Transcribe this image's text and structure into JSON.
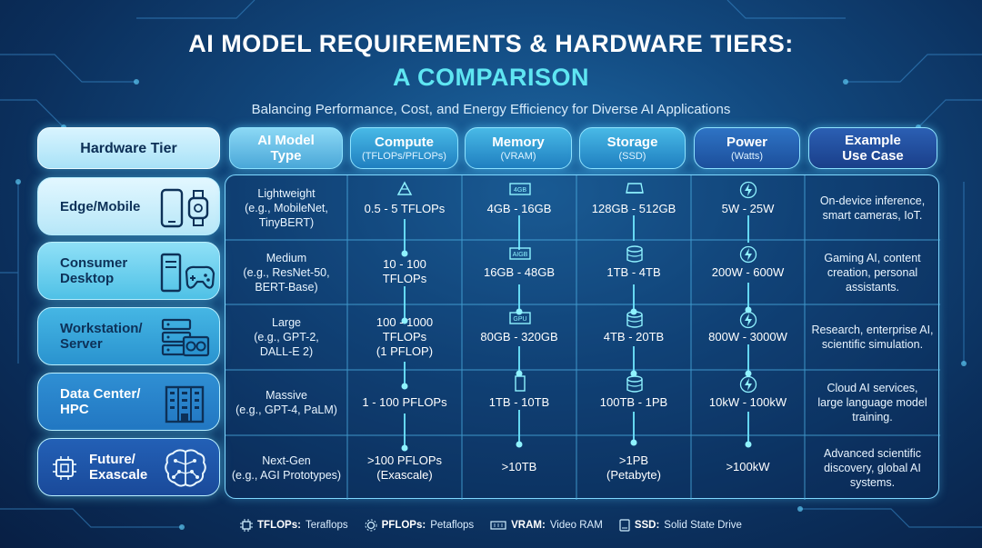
{
  "header": {
    "title_line1": "AI MODEL REQUIREMENTS & HARDWARE TIERS:",
    "title_line2": "A COMPARISON",
    "subtitle": "Balancing Performance, Cost, and Energy Efficiency for Diverse AI Applications"
  },
  "columns": [
    {
      "main": "Hardware Tier",
      "sub": ""
    },
    {
      "main": "AI Model\nType",
      "sub": ""
    },
    {
      "main": "Compute",
      "sub": "(TFLOPs/PFLOPs)"
    },
    {
      "main": "Memory",
      "sub": "(VRAM)"
    },
    {
      "main": "Storage",
      "sub": "(SSD)"
    },
    {
      "main": "Power",
      "sub": "(Watts)"
    },
    {
      "main": "Example\nUse Case",
      "sub": ""
    }
  ],
  "rows": [
    {
      "tier": "Edge/Mobile",
      "model": "Lightweight\n(e.g., MobileNet,\nTinyBERT)",
      "compute": "0.5 - 5 TFLOPs",
      "memory": "4GB - 16GB",
      "memory_chip": "4GB",
      "storage": "128GB - 512GB",
      "power": "5W - 25W",
      "use_case": "On-device inference,\nsmart cameras, IoT."
    },
    {
      "tier": "Consumer\nDesktop",
      "model": "Medium\n(e.g., ResNet-50,\nBERT-Base)",
      "compute": "10 - 100\nTFLOPs",
      "memory": "16GB - 48GB",
      "memory_chip": "AIGB",
      "storage": "1TB - 4TB",
      "power": "200W - 600W",
      "use_case": "Gaming AI, content\ncreation, personal\nassistants."
    },
    {
      "tier": "Workstation/\nServer",
      "model": "Large\n(e.g., GPT-2,\nDALL-E 2)",
      "compute": "100 - 1000\nTFLOPs\n(1 PFLOP)",
      "memory": "80GB - 320GB",
      "memory_chip": "GPU",
      "storage": "4TB - 20TB",
      "power": "800W - 3000W",
      "use_case": "Research, enterprise AI,\nscientific simulation."
    },
    {
      "tier": "Data Center/\nHPC",
      "model": "Massive\n(e.g., GPT-4, PaLM)",
      "compute": "1 - 100 PFLOPs",
      "memory": "1TB - 10TB",
      "memory_chip": "",
      "storage": "100TB - 1PB",
      "power": "10kW - 100kW",
      "use_case": "Cloud AI services,\nlarge language model\ntraining."
    },
    {
      "tier": "Future/\nExascale",
      "model": "Next-Gen\n(e.g., AGI Prototypes)",
      "compute": ">100 PFLOPs\n(Exascale)",
      "memory": ">10TB",
      "memory_chip": "",
      "storage": ">1PB\n(Petabyte)",
      "power": ">100kW",
      "use_case": "Advanced scientific\ndiscovery, global AI\nsystems."
    }
  ],
  "legend": [
    {
      "term": "TFLOPs:",
      "desc": "Teraflops",
      "icon": "chip-icon"
    },
    {
      "term": "PFLOPs:",
      "desc": "Petaflops",
      "icon": "gear-icon"
    },
    {
      "term": "VRAM:",
      "desc": "Video RAM",
      "icon": "memory-chip-icon"
    },
    {
      "term": "SSD:",
      "desc": "Solid State Drive",
      "icon": "ssd-icon"
    }
  ],
  "colors": {
    "accent": "#5fe6f2",
    "grid_line": "#4fc4f0",
    "tier_light": "#cdeffc",
    "tier_mid": "#3fb7e0",
    "tier_dark": "#1f4fa8"
  }
}
